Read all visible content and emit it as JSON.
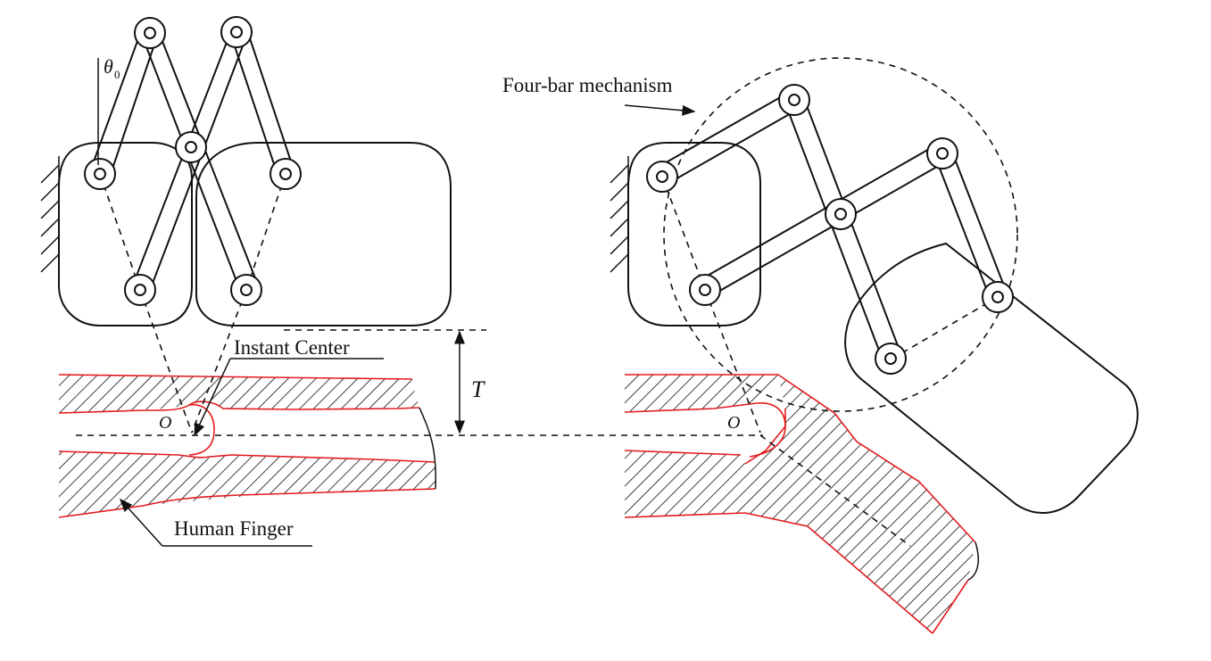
{
  "labels": {
    "theta": "θ",
    "theta_subscript": "0",
    "four_bar": "Four-bar mechanism",
    "instant_center": "Instant Center",
    "human_finger": "Human Finger",
    "t_dim": "T",
    "o_left": "O",
    "o_right": "O"
  }
}
